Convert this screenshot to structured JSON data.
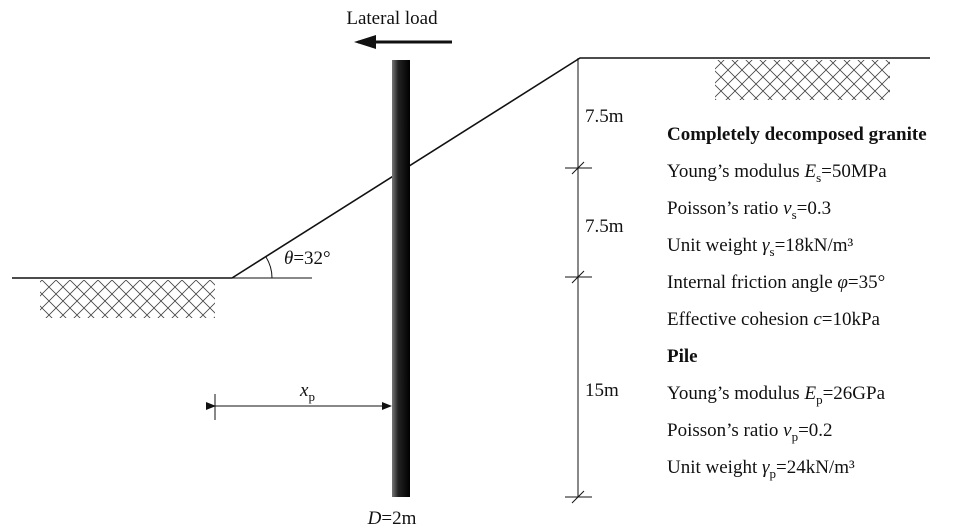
{
  "load_label": "Lateral load",
  "angle": {
    "symbol": "θ",
    "value": "=32°"
  },
  "dims": {
    "layer1": "7.5m",
    "layer2": "7.5m",
    "layer3": "15m"
  },
  "offset": {
    "symbol": "x",
    "sub": "p"
  },
  "diameter": {
    "symbol": "D",
    "value": "=2m"
  },
  "soil": {
    "title": "Completely decomposed granite",
    "properties": [
      {
        "label": "Young’s modulus ",
        "symbol": "E",
        "sub": "s",
        "value": "=50MPa"
      },
      {
        "label": "Poisson’s ratio ",
        "symbol": "ν",
        "sub": "s",
        "value": "=0.3"
      },
      {
        "label": "Unit weight ",
        "symbol": "γ",
        "sub": "s",
        "value": "=18kN/m³"
      },
      {
        "label": "Internal friction angle ",
        "symbol": "φ",
        "value": "=35°"
      },
      {
        "label": "Effective cohesion ",
        "symbol": "c",
        "value": "=10kPa"
      }
    ]
  },
  "pile": {
    "title": "Pile",
    "properties": [
      {
        "label": "Young’s modulus ",
        "symbol": "E",
        "sub": "p",
        "value": "=26GPa"
      },
      {
        "label": "Poisson’s ratio ",
        "symbol": "v",
        "sub": "p",
        "value": "=0.2"
      },
      {
        "label": "Unit weight ",
        "symbol": "γ",
        "sub": "p",
        "value": "=24kN/m³"
      }
    ]
  }
}
